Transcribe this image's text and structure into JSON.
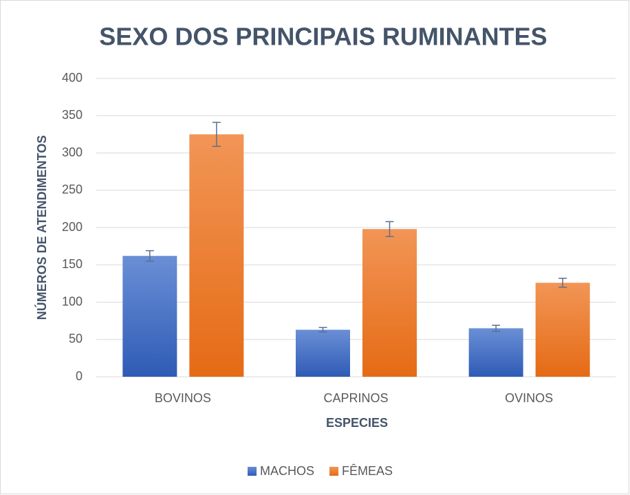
{
  "chart_data": {
    "type": "bar",
    "title": "SEXO DOS PRINCIPAIS RUMINANTES",
    "x_label": "ESPECIES",
    "y_label": "NÚMEROS DE ATENDIMENTOS",
    "categories": [
      "BOVINOS",
      "CAPRINOS",
      "OVINOS"
    ],
    "series": [
      {
        "name": "MACHOS",
        "color": "#4472c4",
        "values": [
          162,
          63,
          65
        ],
        "errors": [
          7,
          3,
          4
        ]
      },
      {
        "name": "FÊMEAS",
        "color": "#ed7d31",
        "values": [
          325,
          198,
          126
        ],
        "errors": [
          16,
          10,
          6
        ]
      }
    ],
    "ylim": [
      0,
      400
    ],
    "yticks": [
      0,
      50,
      100,
      150,
      200,
      250,
      300,
      350,
      400
    ],
    "grid": true,
    "legend": "bottom"
  }
}
